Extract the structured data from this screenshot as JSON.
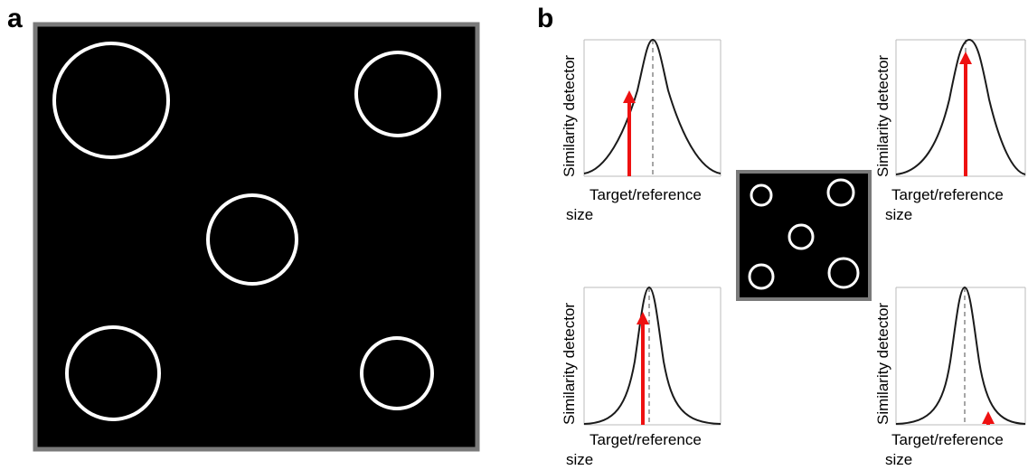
{
  "panels": {
    "a": {
      "letter": "a"
    },
    "b": {
      "letter": "b"
    }
  },
  "plots": {
    "axis_label_y": "Similarity detector",
    "axis_label_x_line1": "Target/reference",
    "axis_label_x_line2": "size",
    "top_left": {
      "relative_arrow_height": 0.6,
      "tuning_width": "broad"
    },
    "top_right": {
      "relative_arrow_height": 0.9,
      "tuning_width": "medium"
    },
    "bottom_left": {
      "relative_arrow_height": 0.8,
      "tuning_width": "narrow"
    },
    "bottom_right": {
      "relative_arrow_height": 0.07,
      "tuning_width": "narrow"
    }
  },
  "colors": {
    "display_background": "#000000",
    "display_border": "#7a7a7a",
    "circle_stroke": "#ffffff",
    "curve": "#1a1a1a",
    "arrow": "#ee1111",
    "reference_line": "#888888"
  }
}
